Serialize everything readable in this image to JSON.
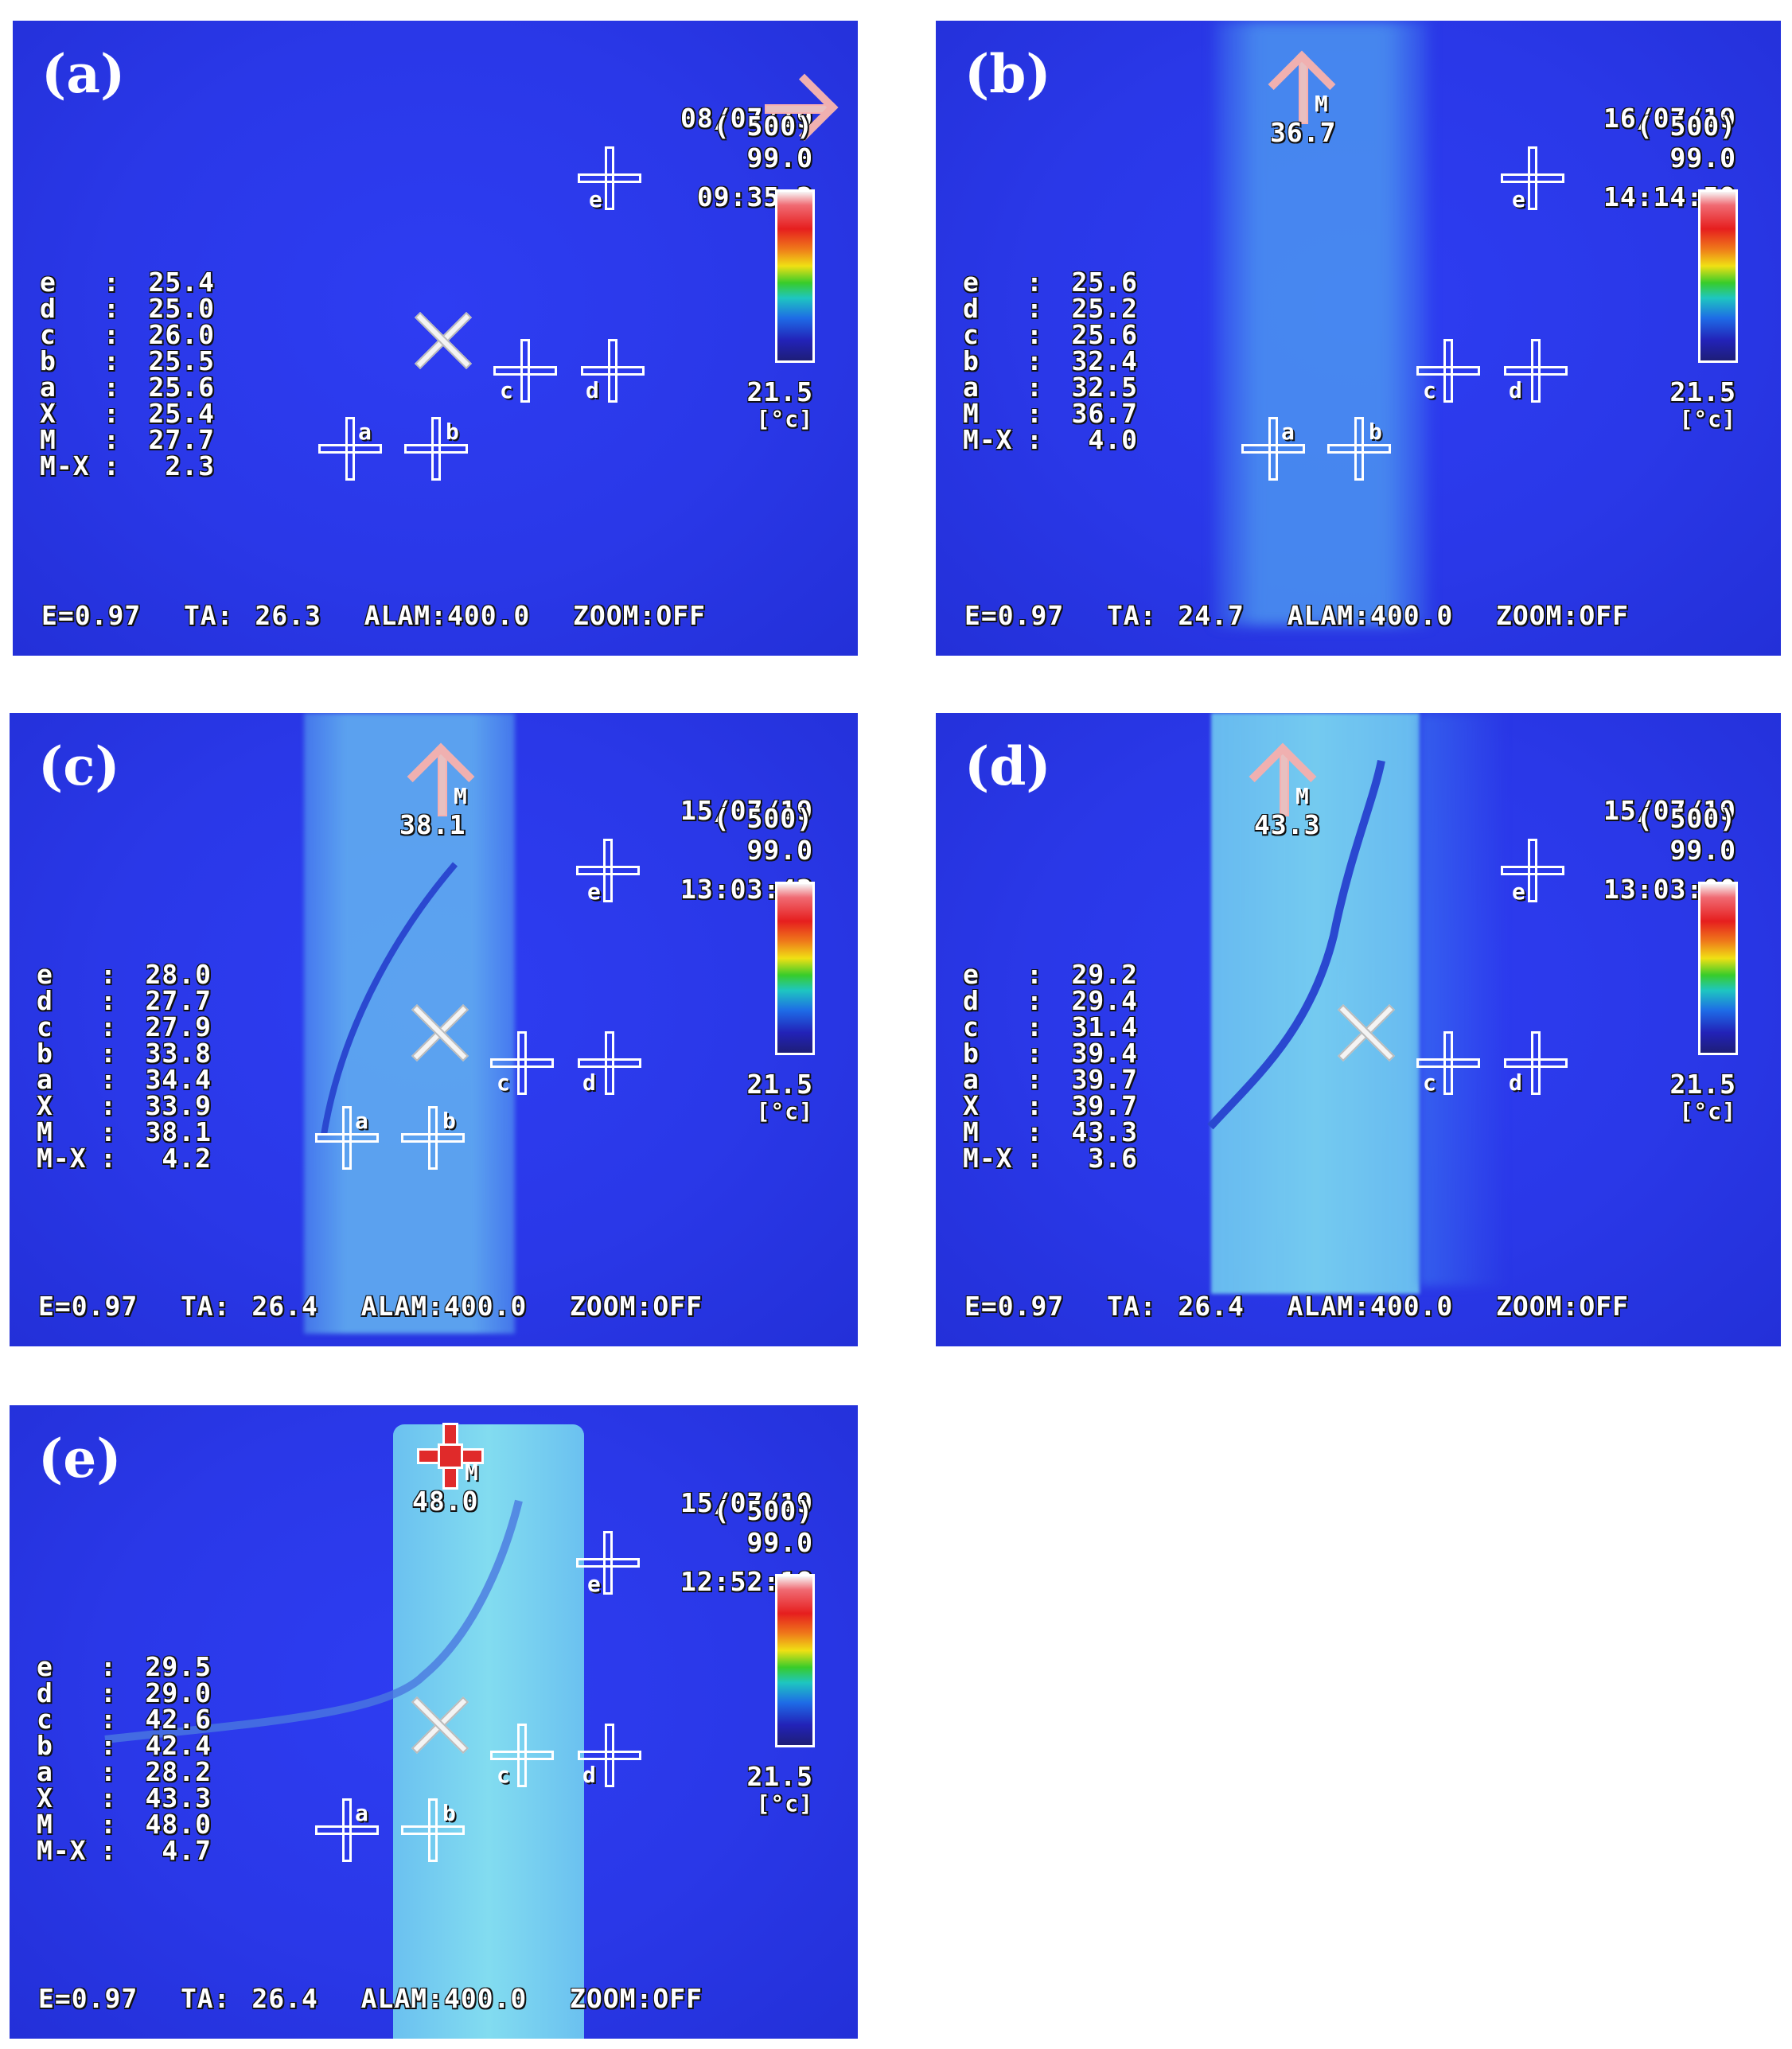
{
  "panels": [
    {
      "label": "(a)",
      "date": "08/07/19",
      "time": "09:35:2",
      "gain": "( 500)",
      "scale_max": "99.0",
      "scale_min": "21.5",
      "unit": "[°c]",
      "max_label": "M",
      "max_value": "",
      "readings": [
        {
          "key": "e",
          "value": "25.4"
        },
        {
          "key": "d",
          "value": "25.0"
        },
        {
          "key": "c",
          "value": "26.0"
        },
        {
          "key": "b",
          "value": "25.5"
        },
        {
          "key": "a",
          "value": "25.6"
        },
        {
          "key": "X",
          "value": "25.4"
        },
        {
          "key": "M",
          "value": "27.7"
        },
        {
          "key": "M-X",
          "value": "2.3"
        }
      ],
      "bottom": "E=0.97  TA: 26.3  ALAM:400.0  ZOOM:OFF"
    },
    {
      "label": "(b)",
      "date": "16/07/19",
      "time": "14:14:59",
      "gain": "( 500)",
      "scale_max": "99.0",
      "scale_min": "21.5",
      "unit": "[°c]",
      "max_label": "M",
      "max_value": "36.7",
      "readings": [
        {
          "key": "e",
          "value": "25.6"
        },
        {
          "key": "d",
          "value": "25.2"
        },
        {
          "key": "c",
          "value": "25.6"
        },
        {
          "key": "b",
          "value": "32.4"
        },
        {
          "key": "a",
          "value": "32.5"
        },
        {
          "key": "M",
          "value": "36.7"
        },
        {
          "key": "M-X",
          "value": "4.0"
        }
      ],
      "bottom": "E=0.97  TA: 24.7  ALAM:400.0  ZOOM:OFF"
    },
    {
      "label": "(c)",
      "date": "15/07/19",
      "time": "13:03:42",
      "gain": "( 500)",
      "scale_max": "99.0",
      "scale_min": "21.5",
      "unit": "[°c]",
      "max_label": "M",
      "max_value": "38.1",
      "readings": [
        {
          "key": "e",
          "value": "28.0"
        },
        {
          "key": "d",
          "value": "27.7"
        },
        {
          "key": "c",
          "value": "27.9"
        },
        {
          "key": "b",
          "value": "33.8"
        },
        {
          "key": "a",
          "value": "34.4"
        },
        {
          "key": "X",
          "value": "33.9"
        },
        {
          "key": "M",
          "value": "38.1"
        },
        {
          "key": "M-X",
          "value": "4.2"
        }
      ],
      "bottom": "E=0.97  TA: 26.4  ALAM:400.0  ZOOM:OFF"
    },
    {
      "label": "(d)",
      "date": "15/07/19",
      "time": "13:03:00",
      "gain": "( 500)",
      "scale_max": "99.0",
      "scale_min": "21.5",
      "unit": "[°c]",
      "max_label": "M",
      "max_value": "43.3",
      "readings": [
        {
          "key": "e",
          "value": "29.2"
        },
        {
          "key": "d",
          "value": "29.4"
        },
        {
          "key": "c",
          "value": "31.4"
        },
        {
          "key": "b",
          "value": "39.4"
        },
        {
          "key": "a",
          "value": "39.7"
        },
        {
          "key": "X",
          "value": "39.7"
        },
        {
          "key": "M",
          "value": "43.3"
        },
        {
          "key": "M-X",
          "value": "3.6"
        }
      ],
      "bottom": "E=0.97  TA: 26.4  ALAM:400.0  ZOOM:OFF"
    },
    {
      "label": "(e)",
      "date": "15/07/19",
      "time": "12:52:18",
      "gain": "( 500)",
      "scale_max": "99.0",
      "scale_min": "21.5",
      "unit": "[°c]",
      "max_label": "M",
      "max_value": "48.0",
      "readings": [
        {
          "key": "e",
          "value": "29.5"
        },
        {
          "key": "d",
          "value": "29.0"
        },
        {
          "key": "c",
          "value": "42.6"
        },
        {
          "key": "b",
          "value": "42.4"
        },
        {
          "key": "a",
          "value": "28.2"
        },
        {
          "key": "X",
          "value": "43.3"
        },
        {
          "key": "M",
          "value": "48.0"
        },
        {
          "key": "M-X",
          "value": "4.7"
        }
      ],
      "bottom": "E=0.97  TA: 26.4  ALAM:400.0  ZOOM:OFF"
    }
  ],
  "colors": {
    "background": "#2a38e8",
    "hot_region": "#5fb8f0",
    "marker_white": "#ffffff",
    "max_arrow": "#f0b0b0",
    "max_marker_red": "#e02a2a"
  }
}
